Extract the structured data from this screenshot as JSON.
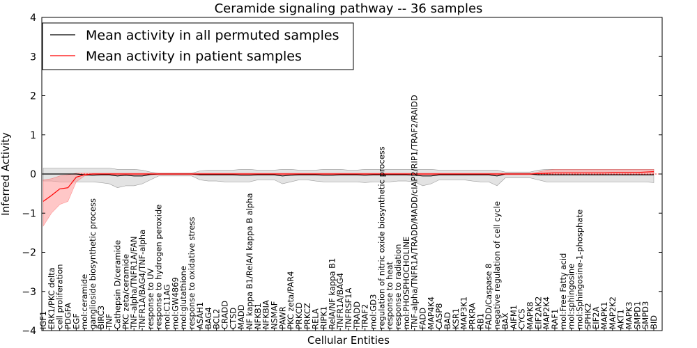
{
  "chart_data": {
    "type": "line",
    "title": "Ceramide signaling pathway -- 36 samples",
    "xlabel": "Cellular Entities",
    "ylabel": "Inferred Activity",
    "ylim": [
      -4,
      4
    ],
    "yticks": [
      -4,
      -3,
      -2,
      -1,
      0,
      1,
      2,
      3,
      4
    ],
    "grid": false,
    "legend_position": "top-left",
    "colors": {
      "perm_line": "#000000",
      "perm_band": "#d9d9d9",
      "patient_line": "#ff0000",
      "patient_band": "#ff9999",
      "zero_line": "#ff0000"
    },
    "categories": [
      "IGF1",
      "ERK1/PKC delta",
      "cell proliferation",
      "PDGFA",
      "EGF",
      "mol:ceramide",
      "ganglioside biosynthetic process",
      "BIRC3",
      "TNF",
      "Cathepsin D/ceramide",
      "PKC zeta/ceramide",
      "TNF-alpha/TNFR1A/FAN",
      "TNFR1A/BAG4/TNF-alpha",
      "response to UV",
      "response to hydrogen peroxide",
      "mol:C11AG",
      "mol:GW4869",
      "mol:glutathione",
      "response to oxidative stress",
      "ASAH1",
      "BAG4",
      "BCL2",
      "CRADD",
      "CTSD",
      "MADD",
      "NF kappa B1/RelA/I kappa B alpha",
      "NFKB1",
      "NFKBIA",
      "NSMAF",
      "PAWR",
      "PKC zeta/PAR4",
      "PRKCD",
      "PRKCZ",
      "RELA",
      "RIPK1",
      "RelA/NF kappa B1",
      "TNFR1A/BAG4",
      "TNFRSF1A",
      "TRADD",
      "TRAF2",
      "mol:GD3",
      "regulation of nitric oxide biosynthetic process",
      "response to heat",
      "response to radiation",
      "mol:PHOSPHOCHOLINE",
      "TNF-alpha/TNFR1A/TRADD/MADD/cIAP2/RIP1/TRAF2/RAIDD",
      "FADD",
      "MAP4K4",
      "CASP8",
      "BAD",
      "KSR1",
      "MAP3K1",
      "PRKRA",
      "RB1",
      "FADD/Caspase 8",
      "negative regulation of cell cycle",
      "BAX",
      "AIFM1",
      "CYCS",
      "MAPK8",
      "EIF2AK2",
      "MAP2K4",
      "RAF1",
      "mol:Free Fatty acid",
      "mol:sphingosine",
      "mol:Sphingosine-1-phosphate",
      "SPHK2",
      "EIF2A",
      "MAPK1",
      "MAP2K2",
      "AKT1",
      "MAPK3",
      "SMPD1",
      "SMPD3",
      "BID"
    ],
    "series": [
      {
        "name": "Mean activity in all permuted samples",
        "color": "#000000",
        "values": [
          0,
          0,
          0,
          0,
          0,
          -0.02,
          -0.03,
          -0.02,
          -0.02,
          -0.05,
          -0.03,
          -0.05,
          -0.05,
          -0.01,
          0,
          0,
          0,
          0,
          0,
          -0.02,
          -0.02,
          -0.02,
          -0.02,
          -0.02,
          -0.03,
          -0.03,
          -0.02,
          -0.02,
          -0.02,
          -0.05,
          -0.03,
          -0.02,
          -0.02,
          -0.02,
          -0.03,
          -0.03,
          -0.02,
          -0.02,
          -0.02,
          -0.03,
          -0.02,
          -0.02,
          -0.02,
          -0.02,
          -0.02,
          -0.03,
          -0.05,
          -0.05,
          -0.02,
          -0.02,
          -0.02,
          -0.02,
          -0.02,
          -0.02,
          -0.02,
          -0.05,
          0,
          0,
          0,
          0,
          -0.02,
          -0.02,
          -0.02,
          -0.02,
          -0.02,
          -0.02,
          -0.02,
          -0.02,
          -0.02,
          -0.02,
          -0.02,
          -0.02,
          -0.02,
          -0.02,
          -0.02
        ],
        "lower": [
          -0.18,
          -0.18,
          -0.2,
          -0.2,
          -0.2,
          -0.2,
          -0.2,
          -0.22,
          -0.25,
          -0.35,
          -0.3,
          -0.3,
          -0.25,
          -0.15,
          -0.05,
          -0.05,
          -0.05,
          -0.05,
          -0.05,
          -0.15,
          -0.18,
          -0.18,
          -0.2,
          -0.2,
          -0.2,
          -0.2,
          -0.15,
          -0.15,
          -0.15,
          -0.25,
          -0.2,
          -0.15,
          -0.15,
          -0.18,
          -0.2,
          -0.2,
          -0.2,
          -0.2,
          -0.2,
          -0.22,
          -0.2,
          -0.2,
          -0.2,
          -0.18,
          -0.18,
          -0.2,
          -0.3,
          -0.25,
          -0.15,
          -0.15,
          -0.15,
          -0.15,
          -0.18,
          -0.2,
          -0.2,
          -0.3,
          -0.1,
          -0.1,
          -0.1,
          -0.1,
          -0.15,
          -0.2,
          -0.2,
          -0.2,
          -0.2,
          -0.2,
          -0.2,
          -0.2,
          -0.2,
          -0.2,
          -0.2,
          -0.2,
          -0.2,
          -0.2,
          -0.22
        ],
        "upper": [
          0.15,
          0.15,
          0.15,
          0.15,
          0.15,
          0.15,
          0.15,
          0.15,
          0.15,
          0.12,
          0.12,
          0.12,
          0.1,
          0.05,
          0.02,
          0.02,
          0.02,
          0.02,
          0.02,
          0.08,
          0.1,
          0.1,
          0.1,
          0.1,
          0.12,
          0.12,
          0.1,
          0.1,
          0.1,
          0.12,
          0.12,
          0.1,
          0.1,
          0.1,
          0.12,
          0.12,
          0.12,
          0.1,
          0.1,
          0.12,
          0.12,
          0.12,
          0.12,
          0.12,
          0.12,
          0.12,
          0.12,
          0.12,
          0.1,
          0.1,
          0.1,
          0.1,
          0.1,
          0.1,
          0.1,
          0.1,
          0.05,
          0.05,
          0.05,
          0.05,
          0.1,
          0.12,
          0.12,
          0.12,
          0.12,
          0.12,
          0.12,
          0.12,
          0.12,
          0.12,
          0.12,
          0.12,
          0.12,
          0.12,
          0.12
        ]
      },
      {
        "name": "Mean activity in patient samples",
        "color": "#ff0000",
        "values": [
          -0.7,
          -0.55,
          -0.38,
          -0.35,
          -0.08,
          -0.02,
          0,
          0,
          0,
          0,
          0,
          0,
          0,
          0,
          0,
          0,
          0,
          0,
          0,
          0,
          0,
          0,
          0,
          0,
          0,
          0,
          0,
          0,
          0,
          0,
          0,
          0,
          0,
          0,
          0,
          0,
          0,
          0,
          0,
          0,
          0,
          0,
          0,
          0,
          0,
          0,
          0,
          0,
          0,
          0,
          0,
          0,
          0,
          0,
          0,
          0,
          0,
          0,
          0,
          0,
          0.01,
          0.02,
          0.03,
          0.03,
          0.03,
          0.03,
          0.03,
          0.03,
          0.03,
          0.04,
          0.04,
          0.04,
          0.04,
          0.05,
          0.06
        ],
        "lower": [
          -1.33,
          -1.0,
          -0.78,
          -0.7,
          -0.2,
          -0.05,
          -0.02,
          -0.02,
          -0.02,
          -0.02,
          -0.02,
          -0.02,
          -0.02,
          -0.02,
          -0.02,
          -0.02,
          -0.02,
          -0.02,
          -0.02,
          -0.02,
          -0.02,
          -0.02,
          -0.02,
          -0.02,
          -0.02,
          -0.02,
          -0.02,
          -0.02,
          -0.02,
          -0.02,
          -0.02,
          -0.02,
          -0.02,
          -0.02,
          -0.02,
          -0.02,
          -0.02,
          -0.02,
          -0.02,
          -0.02,
          -0.02,
          -0.02,
          -0.02,
          -0.02,
          -0.02,
          -0.02,
          -0.02,
          -0.02,
          -0.02,
          -0.02,
          -0.02,
          -0.02,
          -0.02,
          -0.02,
          -0.02,
          -0.02,
          -0.02,
          -0.02,
          -0.02,
          -0.02,
          -0.02,
          -0.02,
          -0.02,
          -0.02,
          -0.02,
          -0.02,
          -0.02,
          -0.02,
          -0.02,
          -0.02,
          -0.02,
          -0.02,
          -0.02,
          -0.02,
          -0.02
        ],
        "upper": [
          -0.15,
          -0.12,
          -0.05,
          -0.02,
          0.02,
          0.02,
          0.02,
          0.02,
          0.02,
          0.02,
          0.02,
          0.02,
          0.02,
          0.02,
          0.02,
          0.02,
          0.02,
          0.02,
          0.02,
          0.02,
          0.02,
          0.02,
          0.02,
          0.02,
          0.02,
          0.02,
          0.02,
          0.02,
          0.02,
          0.02,
          0.02,
          0.02,
          0.02,
          0.02,
          0.02,
          0.02,
          0.02,
          0.02,
          0.02,
          0.02,
          0.02,
          0.02,
          0.02,
          0.02,
          0.02,
          0.02,
          0.02,
          0.02,
          0.02,
          0.02,
          0.02,
          0.02,
          0.02,
          0.02,
          0.02,
          0.02,
          0.02,
          0.02,
          0.02,
          0.02,
          0.05,
          0.1,
          0.12,
          0.12,
          0.12,
          0.12,
          0.12,
          0.12,
          0.12,
          0.12,
          0.12,
          0.12,
          0.12,
          0.12,
          0.12
        ]
      }
    ]
  }
}
